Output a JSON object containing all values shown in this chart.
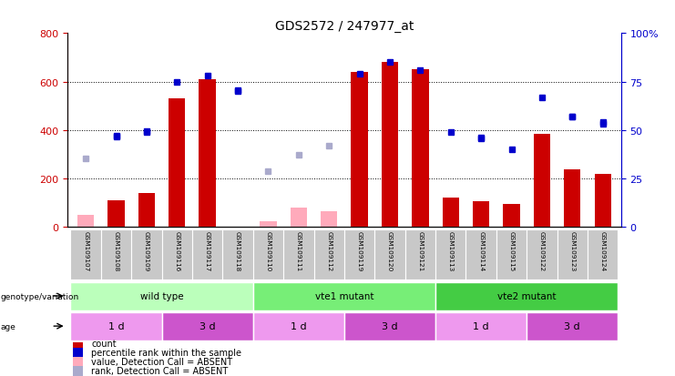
{
  "title": "GDS2572 / 247977_at",
  "samples": [
    "GSM109107",
    "GSM109108",
    "GSM109109",
    "GSM109116",
    "GSM109117",
    "GSM109118",
    "GSM109110",
    "GSM109111",
    "GSM109112",
    "GSM109119",
    "GSM109120",
    "GSM109121",
    "GSM109113",
    "GSM109114",
    "GSM109115",
    "GSM109122",
    "GSM109123",
    "GSM109124"
  ],
  "count_values": [
    null,
    110,
    140,
    530,
    610,
    null,
    null,
    null,
    null,
    640,
    680,
    650,
    120,
    105,
    95,
    385,
    240,
    220
  ],
  "count_absent": [
    50,
    null,
    null,
    null,
    null,
    null,
    25,
    80,
    65,
    null,
    null,
    null,
    null,
    null,
    null,
    null,
    null,
    null
  ],
  "rank_values": [
    null,
    375,
    395,
    null,
    null,
    565,
    null,
    null,
    null,
    null,
    null,
    null,
    null,
    365,
    null,
    null,
    455,
    425
  ],
  "rank_absent": [
    285,
    null,
    null,
    null,
    null,
    null,
    230,
    300,
    335,
    null,
    null,
    null,
    null,
    null,
    null,
    null,
    null,
    null
  ],
  "percentile_values": [
    null,
    47,
    49,
    75,
    78,
    70,
    null,
    null,
    null,
    79,
    85,
    81,
    49,
    46,
    40,
    67,
    57,
    54
  ],
  "ylim_left": [
    0,
    800
  ],
  "ylim_right": [
    0,
    100
  ],
  "yticks_left": [
    0,
    200,
    400,
    600,
    800
  ],
  "yticks_right": [
    0,
    25,
    50,
    75,
    100
  ],
  "bar_color": "#cc0000",
  "bar_absent_color": "#ffaabb",
  "rank_color": "#0000cc",
  "rank_absent_color": "#aaaacc",
  "groups": [
    {
      "label": "wild type",
      "start": 0,
      "end": 6,
      "color": "#bbffbb"
    },
    {
      "label": "vte1 mutant",
      "start": 6,
      "end": 12,
      "color": "#77ee77"
    },
    {
      "label": "vte2 mutant",
      "start": 12,
      "end": 18,
      "color": "#44cc44"
    }
  ],
  "ages": [
    {
      "label": "1 d",
      "start": 0,
      "end": 3,
      "color": "#ee99ee"
    },
    {
      "label": "3 d",
      "start": 3,
      "end": 6,
      "color": "#cc55cc"
    },
    {
      "label": "1 d",
      "start": 6,
      "end": 9,
      "color": "#ee99ee"
    },
    {
      "label": "3 d",
      "start": 9,
      "end": 12,
      "color": "#cc55cc"
    },
    {
      "label": "1 d",
      "start": 12,
      "end": 15,
      "color": "#ee99ee"
    },
    {
      "label": "3 d",
      "start": 15,
      "end": 18,
      "color": "#cc55cc"
    }
  ],
  "legend_items": [
    {
      "label": "count",
      "color": "#cc0000"
    },
    {
      "label": "percentile rank within the sample",
      "color": "#0000cc"
    },
    {
      "label": "value, Detection Call = ABSENT",
      "color": "#ffaabb"
    },
    {
      "label": "rank, Detection Call = ABSENT",
      "color": "#aaaacc"
    }
  ]
}
